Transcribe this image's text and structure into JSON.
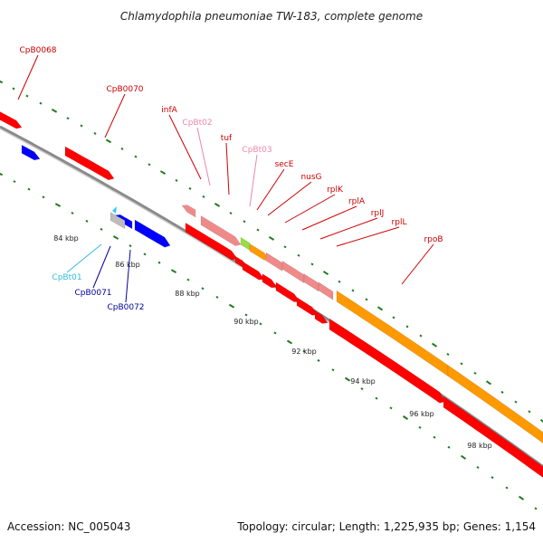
{
  "title": "Chlamydophila pneumoniae TW-183, complete genome",
  "footer": {
    "accession": "Accession: NC_005043",
    "topology": "Topology: circular; Length: 1,225,935 bp; Genes: 1,154"
  },
  "colors": {
    "backbone": "#8a8a8a",
    "tick": "#1f7a1f",
    "cds_red": "#ff0000",
    "cds_blue": "#0000ff",
    "trna_pink": "#f08a8a",
    "rrna_orange": "#ff9900",
    "gray": "#bdbdbd",
    "lightgreen": "#99dd44",
    "cyan": "#33ccff"
  },
  "scale_labels": [
    "84 kbp",
    "86 kbp",
    "88 kbp",
    "90 kbp",
    "92 kbp",
    "94 kbp",
    "96 kbp",
    "98 kbp"
  ],
  "gene_labels": [
    {
      "text": "CpB0068",
      "color": "#cc0000"
    },
    {
      "text": "CpB0070",
      "color": "#cc0000"
    },
    {
      "text": "infA",
      "color": "#cc0000"
    },
    {
      "text": "CpBt02",
      "color": "#ee88aa"
    },
    {
      "text": "tuf",
      "color": "#cc0000"
    },
    {
      "text": "CpBt03",
      "color": "#ee88aa"
    },
    {
      "text": "secE",
      "color": "#cc0000"
    },
    {
      "text": "nusG",
      "color": "#cc0000"
    },
    {
      "text": "rplK",
      "color": "#cc0000"
    },
    {
      "text": "rplA",
      "color": "#cc0000"
    },
    {
      "text": "rplJ",
      "color": "#cc0000"
    },
    {
      "text": "rplL",
      "color": "#cc0000"
    },
    {
      "text": "rpoB",
      "color": "#cc0000"
    },
    {
      "text": "CpBt01",
      "color": "#33bbdd"
    },
    {
      "text": "CpB0071",
      "color": "#000099"
    },
    {
      "text": "CpB0072",
      "color": "#000099"
    }
  ]
}
